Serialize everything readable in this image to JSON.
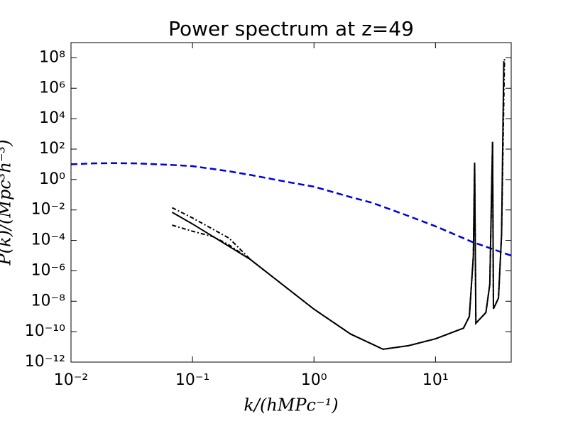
{
  "chart_data": {
    "type": "line",
    "title": "Power spectrum at z=49",
    "x_label": "k/(hMPc⁻¹)",
    "y_label": "P(k)/(Mpc³h⁻³)",
    "x_scale": "log",
    "y_scale": "log",
    "xlim": [
      0.01,
      42
    ],
    "ylim": [
      1e-12,
      1000000000.0
    ],
    "xticks": [
      {
        "value": 0.01,
        "label": "10⁻²"
      },
      {
        "value": 0.1,
        "label": "10⁻¹"
      },
      {
        "value": 1,
        "label": "10⁰"
      },
      {
        "value": 10,
        "label": "10¹"
      }
    ],
    "yticks": [
      {
        "value": 1e-12,
        "label": "10⁻¹²"
      },
      {
        "value": 1e-10,
        "label": "10⁻¹⁰"
      },
      {
        "value": 1e-08,
        "label": "10⁻⁸"
      },
      {
        "value": 1e-06,
        "label": "10⁻⁶"
      },
      {
        "value": 0.0001,
        "label": "10⁻⁴"
      },
      {
        "value": 0.01,
        "label": "10⁻²"
      },
      {
        "value": 1,
        "label": "10⁰"
      },
      {
        "value": 100,
        "label": "10²"
      },
      {
        "value": 10000,
        "label": "10⁴"
      },
      {
        "value": 1000000,
        "label": "10⁶"
      },
      {
        "value": 100000000,
        "label": "10⁸"
      }
    ],
    "series": [
      {
        "color": "#0000dd",
        "style": "dashed",
        "x": [
          0.01,
          0.015,
          0.022,
          0.035,
          0.06,
          0.1,
          0.2,
          0.3,
          0.6,
          1,
          2,
          3,
          6,
          10,
          20,
          42
        ],
        "values": [
          10,
          11.5,
          12,
          11.5,
          9.5,
          7.6,
          3.5,
          2,
          0.7,
          0.34,
          0.07,
          0.03,
          0.004,
          0.00085,
          8e-05,
          1e-05
        ]
      },
      {
        "color": "#000000",
        "style": "solid",
        "x": [
          0.068,
          0.1,
          0.3,
          1,
          2,
          3.7,
          6,
          10,
          17,
          19,
          20.5,
          21,
          21.5,
          26,
          28,
          29.5,
          30,
          33,
          35,
          36.5
        ],
        "values": [
          0.007,
          0.0012,
          5.5e-06,
          3e-09,
          7e-11,
          7e-12,
          1.2e-11,
          3.4e-11,
          1.7e-10,
          1e-09,
          9.5e-06,
          13,
          3.6e-10,
          1.8e-09,
          1.3e-07,
          300,
          3.2e-09,
          1.6e-08,
          0.00025,
          60000000.0
        ]
      },
      {
        "color": "#000000",
        "style": "dashdot",
        "x": [
          0.068,
          0.1,
          0.2,
          0.3,
          1,
          2,
          3.7,
          6,
          10,
          17,
          19,
          20.5,
          21,
          21.5,
          26,
          28,
          29.5,
          30,
          33,
          35,
          37
        ],
        "values": [
          0.014,
          0.003,
          0.00014,
          5.5e-06,
          3e-09,
          7e-11,
          7e-12,
          1.2e-11,
          3.4e-11,
          1.7e-10,
          1e-09,
          9.5e-06,
          13,
          3.6e-10,
          1.8e-09,
          1.3e-07,
          300,
          3.2e-09,
          1.6e-08,
          0.00025,
          100000000.0
        ]
      },
      {
        "color": "#000000",
        "style": "dashdot",
        "x": [
          0.068,
          0.1,
          0.15,
          0.2,
          0.3
        ],
        "values": [
          0.001,
          0.0004,
          0.00017,
          5e-05,
          5.5e-06
        ]
      }
    ]
  }
}
